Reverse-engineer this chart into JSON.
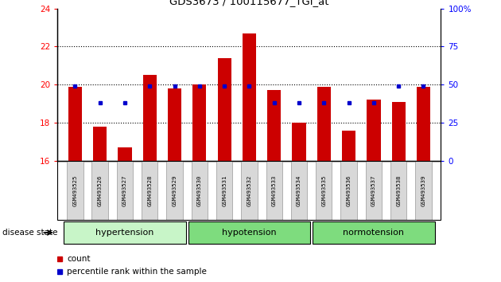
{
  "title": "GDS3673 / 100115677_TGI_at",
  "samples": [
    "GSM493525",
    "GSM493526",
    "GSM493527",
    "GSM493528",
    "GSM493529",
    "GSM493530",
    "GSM493531",
    "GSM493532",
    "GSM493533",
    "GSM493534",
    "GSM493535",
    "GSM493536",
    "GSM493537",
    "GSM493538",
    "GSM493539"
  ],
  "red_values": [
    19.9,
    17.8,
    16.7,
    20.5,
    19.8,
    20.0,
    21.4,
    22.7,
    19.7,
    18.0,
    19.9,
    17.6,
    19.2,
    19.1,
    19.9
  ],
  "blue_values_pct": [
    49,
    38,
    38,
    49,
    49,
    49,
    49,
    49,
    38,
    38,
    38,
    38,
    38,
    49,
    49
  ],
  "ylim_left": [
    16,
    24
  ],
  "ylim_right": [
    0,
    100
  ],
  "yticks_left": [
    16,
    18,
    20,
    22,
    24
  ],
  "yticks_right": [
    0,
    25,
    50,
    75,
    100
  ],
  "ytick_labels_right": [
    "0",
    "25",
    "50",
    "75",
    "100%"
  ],
  "bar_color_red": "#cc0000",
  "bar_color_blue": "#0000cc",
  "baseline": 16,
  "legend_label_red": "count",
  "legend_label_blue": "percentile rank within the sample",
  "disease_state_label": "disease state",
  "dotted_lines": [
    18,
    20,
    22
  ],
  "bar_width": 0.55,
  "group_defs": [
    {
      "label": "hypertension",
      "start": 0,
      "end": 4,
      "color": "#c8f5c8"
    },
    {
      "label": "hypotension",
      "start": 5,
      "end": 9,
      "color": "#7edc7e"
    },
    {
      "label": "normotension",
      "start": 10,
      "end": 14,
      "color": "#7edc7e"
    }
  ]
}
